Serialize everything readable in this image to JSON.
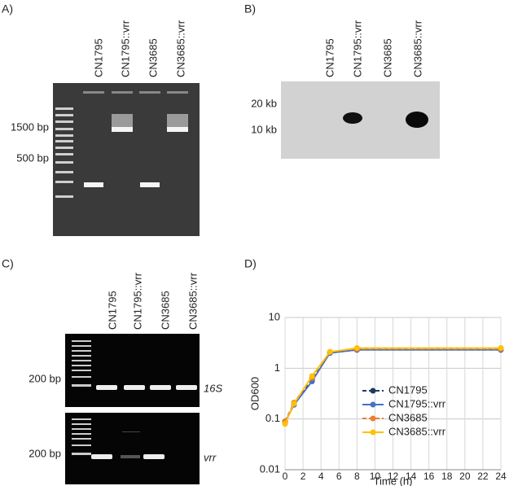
{
  "panels": {
    "a": {
      "label": "A)",
      "lanes": [
        "CN1795",
        "CN1795::vrr",
        "CN3685",
        "CN3685::vrr"
      ],
      "markers": [
        "1500 bp",
        "500 bp"
      ]
    },
    "b": {
      "label": "B)",
      "lanes": [
        "CN1795",
        "CN1795::vrr",
        "CN3685",
        "CN3685::vrr"
      ],
      "markers": [
        "20 kb",
        "10 kb"
      ]
    },
    "c": {
      "label": "C)",
      "lanes": [
        "CN1795",
        "CN1795::vrr",
        "CN3685",
        "CN3685::vrr"
      ],
      "markers": [
        "200 bp",
        "200 bp"
      ],
      "genes": [
        "16S",
        "vrr"
      ]
    },
    "d": {
      "label": "D)"
    }
  },
  "chart_data": {
    "type": "line",
    "x_label": "Time (h)",
    "y_label": "OD600",
    "log_y": true,
    "grid": true,
    "legend": "right",
    "xlim": [
      0,
      24
    ],
    "xticks": [
      0,
      2,
      4,
      6,
      8,
      10,
      12,
      14,
      16,
      18,
      20,
      22,
      24
    ],
    "ylim": [
      0.01,
      10
    ],
    "yticks": [
      0.01,
      0.1,
      1,
      10
    ],
    "x": [
      0,
      1,
      3,
      5,
      8,
      24
    ],
    "series": [
      {
        "name": "CN1795",
        "color": "#203864",
        "line_style": "dashed",
        "values": [
          0.09,
          0.2,
          0.6,
          2.0,
          2.3,
          2.3
        ]
      },
      {
        "name": "CN1795::vrr",
        "color": "#4472c4",
        "line_style": "solid",
        "values": [
          0.085,
          0.19,
          0.55,
          2.0,
          2.3,
          2.3
        ]
      },
      {
        "name": "CN3685",
        "color": "#ed7d31",
        "line_style": "dashed",
        "values": [
          0.09,
          0.21,
          0.65,
          2.1,
          2.4,
          2.4
        ]
      },
      {
        "name": "CN3685::vrr",
        "color": "#ffc000",
        "line_style": "solid",
        "values": [
          0.08,
          0.2,
          0.7,
          2.1,
          2.5,
          2.5
        ]
      }
    ]
  }
}
